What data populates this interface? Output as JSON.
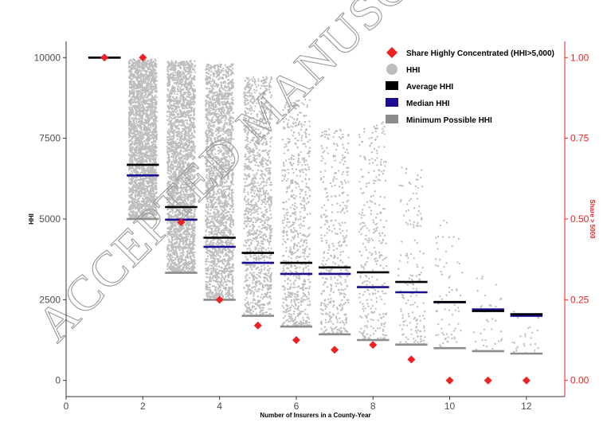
{
  "watermark": "ACCEPTED MANUSCRIPT",
  "chart_data": {
    "type": "scatter",
    "title": "",
    "xlabel": "Number of Insurers in a County-Year",
    "ylabel": "HHI",
    "y2label": "Share > 5000",
    "xlim": [
      0,
      13
    ],
    "ylim": [
      -500,
      10500
    ],
    "y2lim": [
      -0.05,
      1.05
    ],
    "x_ticks": [
      0,
      2,
      4,
      6,
      8,
      10,
      12
    ],
    "y_ticks": [
      0,
      2500,
      5000,
      7500,
      10000
    ],
    "y2_ticks": [
      "0.00",
      "0.25",
      "0.50",
      "0.75",
      "1.00"
    ],
    "y2_tick_values": [
      0,
      0.25,
      0.5,
      0.75,
      1.0
    ],
    "grid": false,
    "legend_position": "top-right",
    "legend": [
      {
        "key": "share",
        "label": "Share Highly Concentrated (HHI>5,000)"
      },
      {
        "key": "hhi",
        "label": "HHI"
      },
      {
        "key": "avg",
        "label": "Average HHI"
      },
      {
        "key": "median",
        "label": "Median HHI"
      },
      {
        "key": "min",
        "label": "Minimum Possible HHI"
      }
    ],
    "colors": {
      "points": "#bdbdbd",
      "average": "#000000",
      "median": "#1a0f8f",
      "minimum": "#8c8c8c",
      "share": "#ee2222"
    },
    "series": [
      {
        "name": "Average HHI",
        "x": [
          1,
          2,
          3,
          4,
          5,
          6,
          7,
          8,
          9,
          10,
          11,
          12
        ],
        "values": [
          10000,
          6680,
          5370,
          4420,
          3950,
          3640,
          3500,
          3350,
          3050,
          2430,
          2150,
          2050
        ]
      },
      {
        "name": "Median HHI",
        "x": [
          1,
          2,
          3,
          4,
          5,
          6,
          7,
          8,
          9,
          10,
          11,
          12
        ],
        "values": [
          10000,
          6350,
          4980,
          4140,
          3640,
          3300,
          3300,
          2890,
          2730,
          2420,
          2200,
          2000
        ]
      },
      {
        "name": "Minimum Possible HHI",
        "x": [
          2,
          3,
          4,
          5,
          6,
          7,
          8,
          9,
          10,
          11,
          12
        ],
        "values": [
          5000,
          3333,
          2500,
          2000,
          1667,
          1429,
          1250,
          1111,
          1000,
          909,
          833
        ]
      },
      {
        "name": "Share Highly Concentrated (HHI>5,000)",
        "axis": "right",
        "x": [
          1,
          2,
          3,
          4,
          5,
          6,
          7,
          8,
          9,
          10,
          11,
          12
        ],
        "values": [
          1.0,
          1.0,
          0.49,
          0.25,
          0.17,
          0.125,
          0.095,
          0.11,
          0.065,
          0.0,
          0.0,
          0.0
        ]
      }
    ],
    "hhi_points": {
      "description": "dense per-county-year HHI observations; drawn as a jittered cloud between min and max per group",
      "groups": [
        {
          "x": 2,
          "min": 5000,
          "max": 9950,
          "n": 2600
        },
        {
          "x": 3,
          "min": 3333,
          "max": 9900,
          "n": 2600
        },
        {
          "x": 4,
          "min": 2500,
          "max": 9800,
          "n": 2200
        },
        {
          "x": 5,
          "min": 2000,
          "max": 9400,
          "n": 1200
        },
        {
          "x": 6,
          "min": 1667,
          "max": 8700,
          "n": 700
        },
        {
          "x": 7,
          "min": 1429,
          "max": 7800,
          "n": 420
        },
        {
          "x": 8,
          "min": 1250,
          "max": 8000,
          "n": 320
        },
        {
          "x": 9,
          "min": 1111,
          "max": 6600,
          "n": 170
        },
        {
          "x": 10,
          "min": 1000,
          "max": 5000,
          "n": 75
        },
        {
          "x": 11,
          "min": 909,
          "max": 3300,
          "n": 38
        },
        {
          "x": 12,
          "min": 833,
          "max": 2300,
          "n": 30
        }
      ]
    }
  }
}
